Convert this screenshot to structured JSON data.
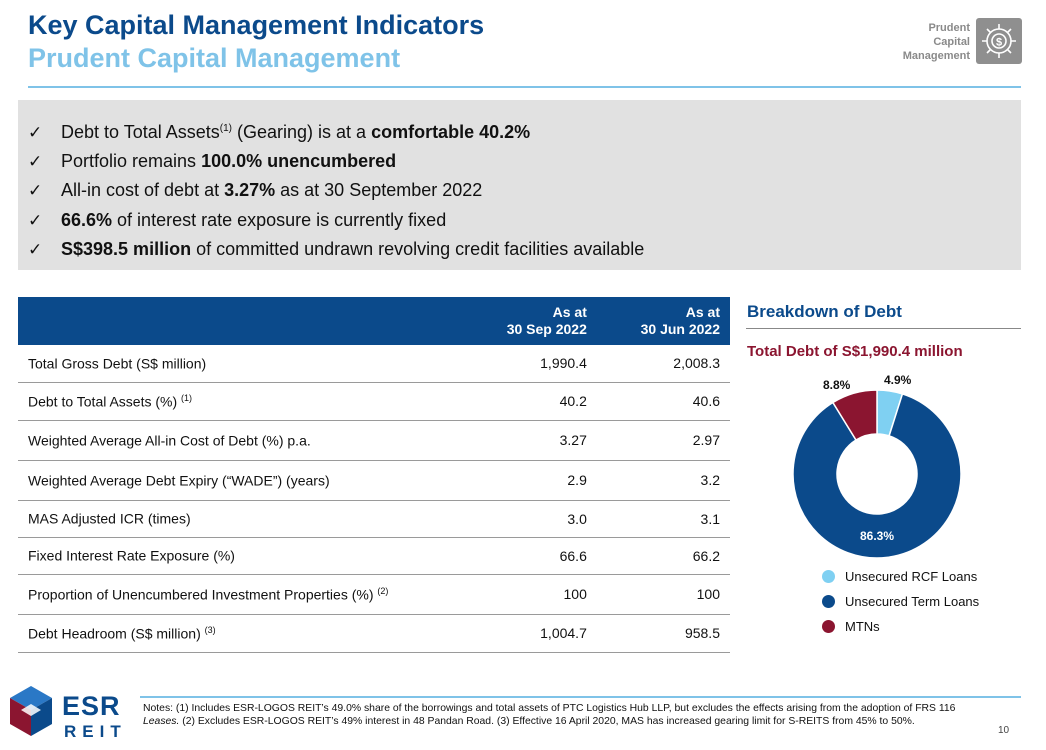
{
  "header": {
    "title": "Key Capital Management Indicators",
    "subtitle": "Prudent Capital Management",
    "badge_text": "Prudent\nCapital\nManagement",
    "badge_icon": "gear-dollar-icon"
  },
  "summary": {
    "bullets": [
      {
        "pre": "Debt to Total Assets",
        "sup": "(1)",
        "mid": " (Gearing) is at a ",
        "bold": "comfortable 40.2%",
        "post": ""
      },
      {
        "pre": "Portfolio remains ",
        "sup": "",
        "mid": "",
        "bold": "100.0% unencumbered",
        "post": ""
      },
      {
        "pre": "All-in cost of debt at ",
        "sup": "",
        "mid": "",
        "bold": "3.27%",
        "post": " as at 30 September 2022"
      },
      {
        "pre": "",
        "sup": "",
        "mid": "",
        "bold": "66.6%",
        "post": " of interest rate exposure is currently fixed"
      },
      {
        "pre": "",
        "sup": "",
        "mid": "",
        "bold": "S$398.5 million",
        "post": " of committed undrawn revolving credit facilities available"
      }
    ]
  },
  "table": {
    "columns": [
      {
        "line1": "As at",
        "line2": "30 Sep 2022"
      },
      {
        "line1": "As at",
        "line2": "30 Jun 2022"
      }
    ],
    "rows": [
      {
        "label": "Total Gross Debt (S$ million)",
        "sup": "",
        "v1": "1,990.4",
        "v2": "2,008.3"
      },
      {
        "label": "Debt to Total Assets (%)",
        "sup": "(1)",
        "v1": "40.2",
        "v2": "40.6"
      },
      {
        "label": "Weighted Average All-in Cost of Debt (%) p.a.",
        "sup": "",
        "v1": "3.27",
        "v2": "2.97"
      },
      {
        "label": "Weighted Average Debt Expiry (“WADE”) (years)",
        "sup": "",
        "v1": "2.9",
        "v2": "3.2"
      },
      {
        "label": "MAS Adjusted ICR (times)",
        "sup": "",
        "v1": "3.0",
        "v2": "3.1"
      },
      {
        "label": "Fixed Interest Rate Exposure (%)",
        "sup": "",
        "v1": "66.6",
        "v2": "66.2"
      },
      {
        "label": "Proportion of Unencumbered Investment Properties (%)",
        "sup": "(2)",
        "v1": "100",
        "v2": "100"
      },
      {
        "label": "Debt Headroom (S$ million)",
        "sup": "(3)",
        "v1": "1,004.7",
        "v2": "958.5"
      }
    ]
  },
  "breakdown": {
    "title": "Breakdown of Debt",
    "subtitle": "Total Debt of S$1,990.4 million"
  },
  "chart_data": {
    "type": "pie",
    "donut": true,
    "categories": [
      "Unsecured RCF Loans",
      "Unsecured Term Loans",
      "MTNs"
    ],
    "values": [
      4.9,
      86.3,
      8.8
    ],
    "labels": [
      "4.9%",
      "86.3%",
      "8.8%"
    ],
    "colors": [
      "#7fd0f2",
      "#0b4a8b",
      "#8b1530"
    ],
    "legend_position": "bottom"
  },
  "footer": {
    "notes_part1": "Notes: (1) Includes ESR-LOGOS REIT’s 49.0% share of the borrowings and total assets of PTC Logistics Hub LLP, but excludes the effects arising from the adoption of FRS 116 ",
    "notes_italic": "Leases.",
    "notes_part2": " (2) Excludes ESR-LOGOS REIT’s 49% interest in 48 Pandan Road. (3) Effective 16 April 2020, MAS has increased gearing limit for S-REITS from 45% to 50%.",
    "page_number": "10",
    "logo_main": "ESR",
    "logo_sub": "REIT"
  }
}
